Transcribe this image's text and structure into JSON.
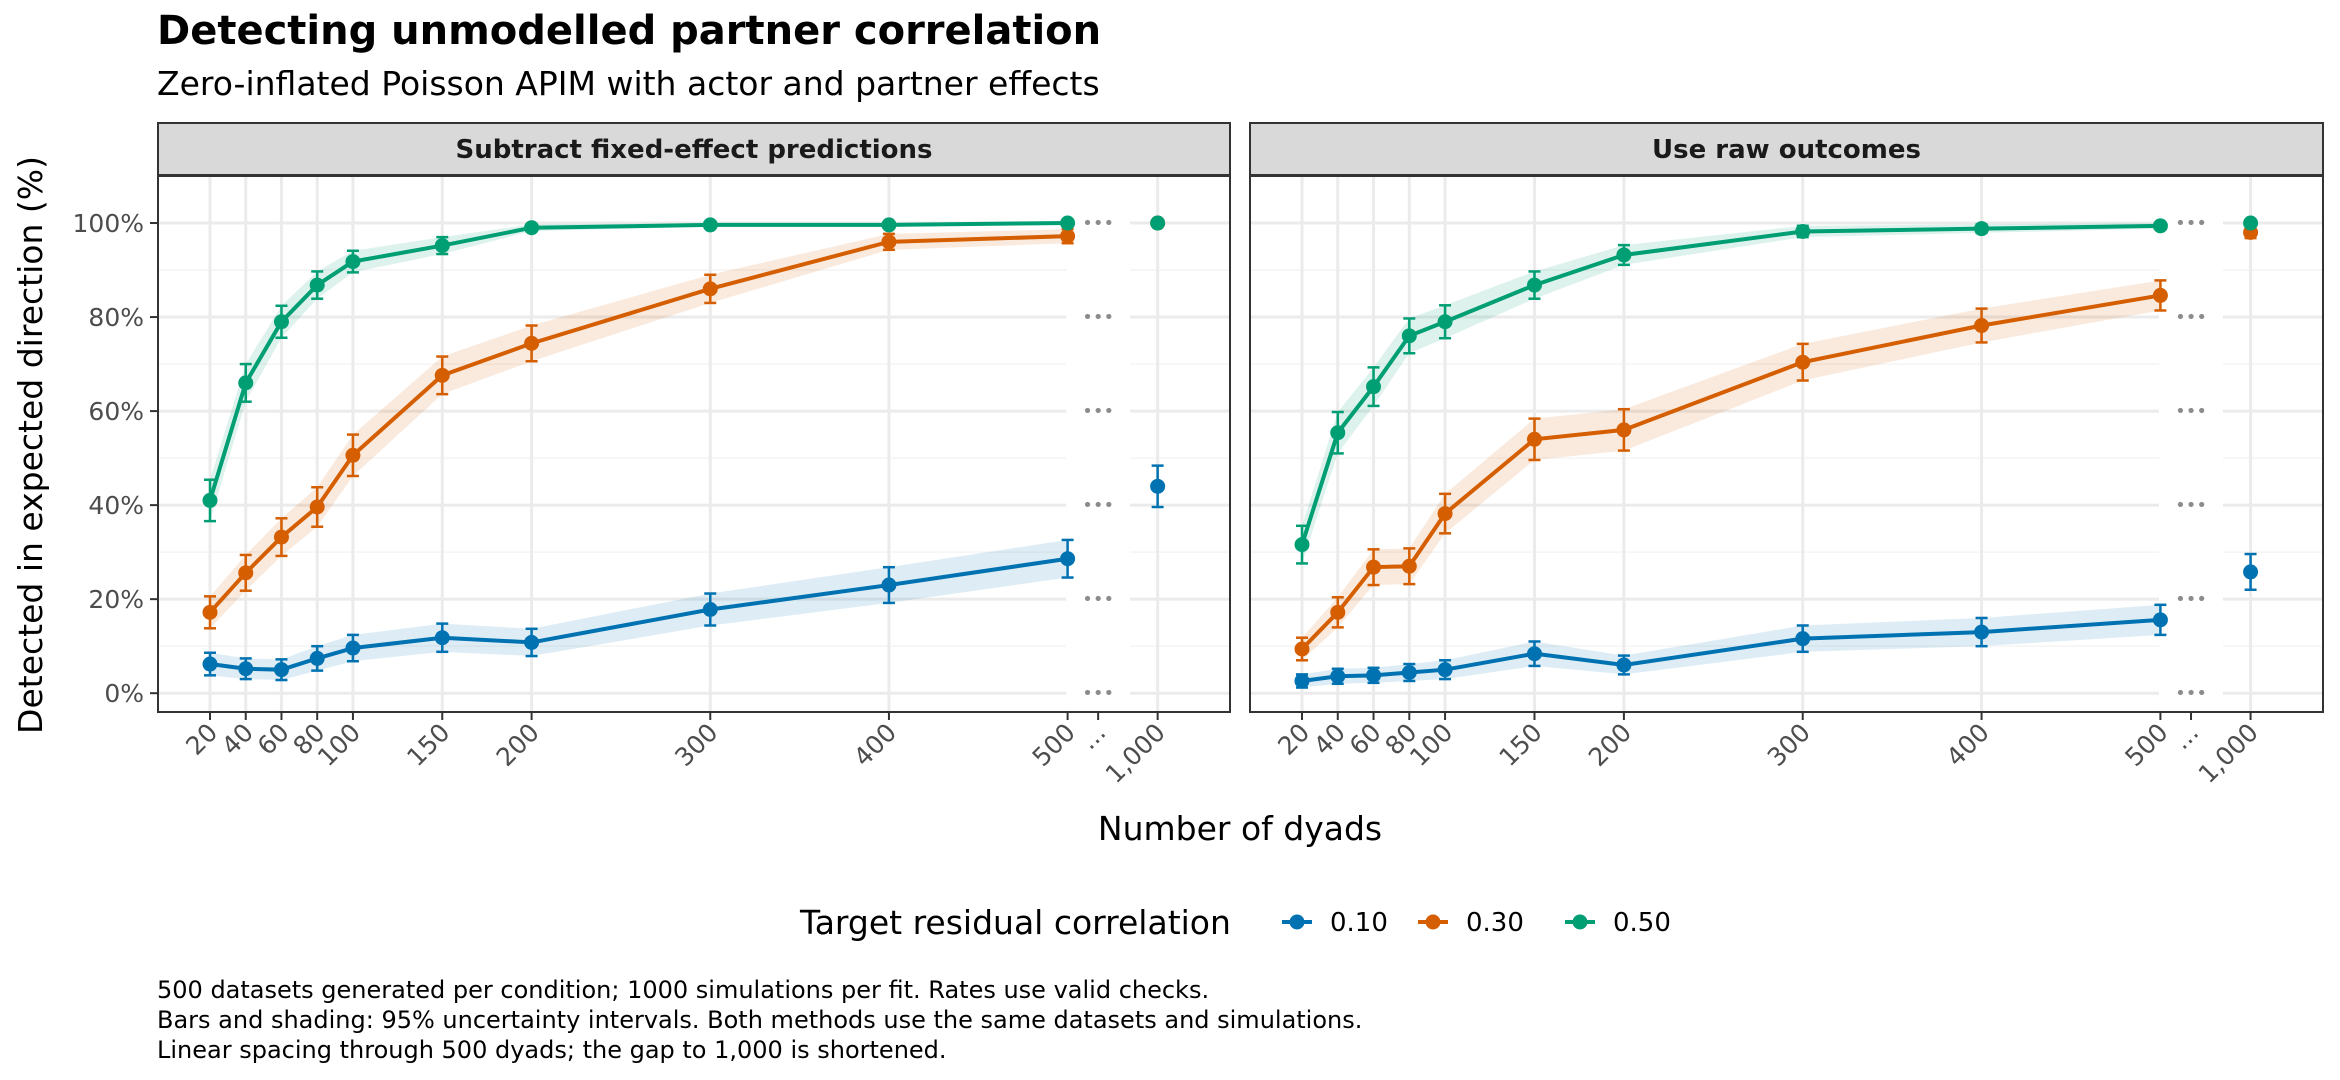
{
  "title": "Detecting unmodelled partner correlation",
  "subtitle": "Zero-inflated Poisson APIM with actor and partner effects",
  "caption": [
    "500 datasets generated per condition; 1000 simulations per fit. Rates use valid checks.",
    "Bars and shading: 95% uncertainty intervals. Both methods use the same datasets and simulations.",
    "Linear spacing through 500 dyads; the gap to 1,000 is shortened."
  ],
  "chart_data": {
    "type": "line",
    "xlabel": "Number of dyads",
    "ylabel": "Detected in expected direction (%)",
    "x": [
      20,
      40,
      60,
      80,
      100,
      150,
      200,
      300,
      400,
      500
    ],
    "x_tick_labels": [
      "20",
      "40",
      "60",
      "80",
      "100",
      "150",
      "200",
      "300",
      "400",
      "500",
      "...",
      "1,000"
    ],
    "gap_label": "...",
    "x_extra": 1000,
    "x_extra_label": "1,000",
    "ylim": [
      -4,
      110
    ],
    "y_ticks": [
      0,
      20,
      40,
      60,
      80,
      100
    ],
    "y_tick_labels": [
      "0%",
      "20%",
      "40%",
      "60%",
      "80%",
      "100%"
    ],
    "grid": true,
    "legend": {
      "title": "Target residual correlation",
      "position": "bottom",
      "entries": [
        "0.10",
        "0.30",
        "0.50"
      ]
    },
    "series_colors": [
      "#0072b2",
      "#d55e00",
      "#009e73"
    ],
    "panels": [
      {
        "title": "Subtract fixed-effect predictions",
        "series": [
          {
            "name": "0.10",
            "values": [
              6.2,
              5.2,
              5.0,
              7.4,
              9.6,
              11.8,
              10.8,
              17.8,
              23.0,
              28.6
            ],
            "err": [
              2.4,
              2.2,
              2.2,
              2.6,
              2.8,
              3.0,
              2.9,
              3.4,
              3.8,
              4.0
            ],
            "extra": 44.0,
            "extra_err": 4.4
          },
          {
            "name": "0.30",
            "values": [
              17.2,
              25.6,
              33.2,
              39.6,
              50.6,
              67.6,
              74.4,
              86.0,
              96.0,
              97.2
            ],
            "err": [
              3.4,
              3.8,
              4.0,
              4.2,
              4.4,
              4.0,
              3.8,
              3.0,
              1.7,
              1.5
            ],
            "extra": 100.0,
            "extra_err": 0.2
          },
          {
            "name": "0.50",
            "values": [
              41.0,
              66.0,
              79.0,
              86.8,
              91.8,
              95.2,
              99.0,
              99.6,
              99.6,
              100.0
            ],
            "err": [
              4.4,
              4.0,
              3.4,
              2.9,
              2.3,
              1.8,
              0.7,
              0.4,
              0.4,
              0.1
            ],
            "extra": 100.0,
            "extra_err": 0.1
          }
        ]
      },
      {
        "title": "Use raw outcomes",
        "series": [
          {
            "name": "0.10",
            "values": [
              2.6,
              3.6,
              3.8,
              4.4,
              5.0,
              8.4,
              6.0,
              11.6,
              13.0,
              15.6
            ],
            "err": [
              1.4,
              1.6,
              1.6,
              1.8,
              2.0,
              2.6,
              2.0,
              2.8,
              3.0,
              3.2
            ],
            "extra": 25.8,
            "extra_err": 3.8
          },
          {
            "name": "0.30",
            "values": [
              9.4,
              17.2,
              26.8,
              27.0,
              38.2,
              54.0,
              56.0,
              70.4,
              78.2,
              84.6
            ],
            "err": [
              2.4,
              3.2,
              3.8,
              3.8,
              4.2,
              4.4,
              4.4,
              3.9,
              3.6,
              3.2
            ],
            "extra": 98.0,
            "extra_err": 1.2
          },
          {
            "name": "0.50",
            "values": [
              31.6,
              55.4,
              65.2,
              76.0,
              79.0,
              86.8,
              93.2,
              98.2,
              98.8,
              99.4
            ],
            "err": [
              4.0,
              4.4,
              4.1,
              3.7,
              3.5,
              2.9,
              2.1,
              1.2,
              0.9,
              0.6
            ],
            "extra": 100.0,
            "extra_err": 0.1
          }
        ]
      }
    ]
  }
}
